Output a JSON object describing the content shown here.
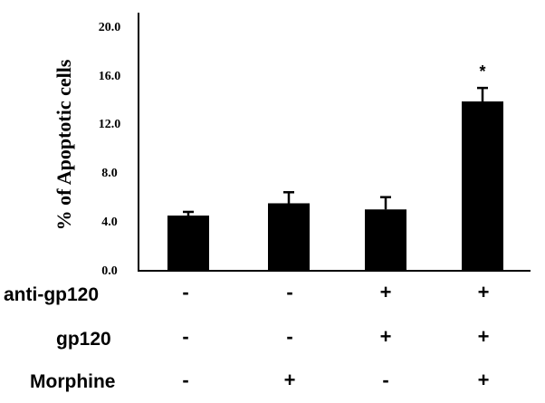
{
  "chart_data": {
    "type": "bar",
    "ylabel": "% of Apoptotic cells",
    "ylim": [
      0,
      20
    ],
    "yticks": [
      "0.0",
      "4.0",
      "8.0",
      "12.0",
      "16.0",
      "20.0"
    ],
    "grid": false,
    "values": [
      4.5,
      5.5,
      5.0,
      13.8
    ],
    "errors": [
      0.3,
      0.9,
      1.0,
      1.1
    ],
    "significance": [
      "",
      "",
      "",
      "*"
    ],
    "conditions": [
      {
        "label": "anti-gp120",
        "signs": [
          "-",
          "-",
          "+",
          "+"
        ]
      },
      {
        "label": "gp120",
        "signs": [
          "-",
          "-",
          "+",
          "+"
        ]
      },
      {
        "label": "Morphine",
        "signs": [
          "-",
          "+",
          "-",
          "+"
        ]
      }
    ],
    "colors": {
      "bar": "#000000",
      "axis": "#000000",
      "text": "#000000"
    }
  }
}
